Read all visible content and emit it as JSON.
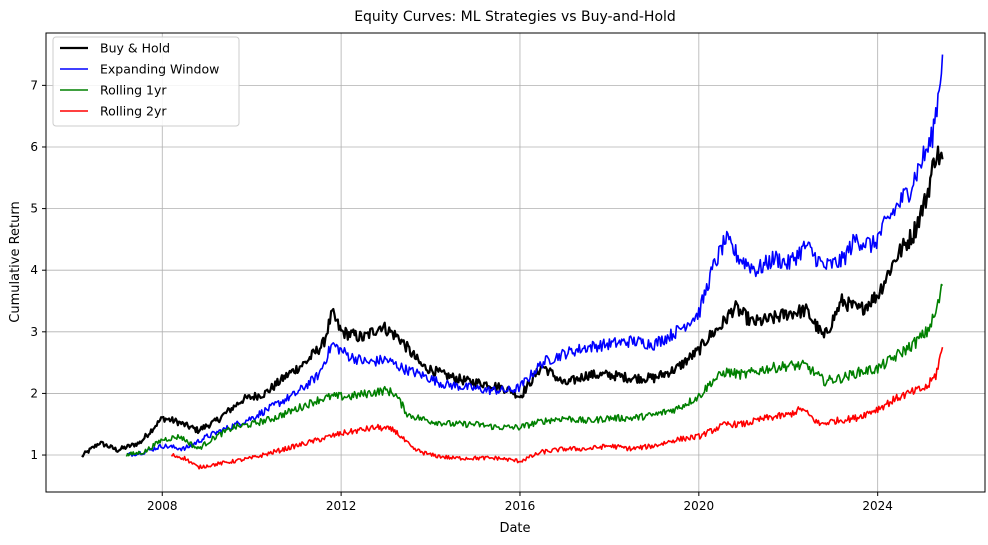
{
  "chart_data": {
    "type": "line",
    "title": "Equity Curves: ML Strategies vs Buy-and-Hold",
    "xlabel": "Date",
    "ylabel": "Cumulative Return",
    "xlim": [
      2005.4,
      2026.4
    ],
    "ylim": [
      0.4,
      7.85
    ],
    "xticks": [
      2008,
      2012,
      2016,
      2020,
      2024
    ],
    "yticks": [
      1,
      2,
      3,
      4,
      5,
      6,
      7
    ],
    "grid": true,
    "legend_position": "top-left",
    "series": [
      {
        "name": "Buy & Hold",
        "color": "#000000",
        "width": 2.2,
        "x": [
          2006.2,
          2006.6,
          2007.0,
          2007.5,
          2008.0,
          2008.3,
          2008.8,
          2009.2,
          2009.8,
          2010.3,
          2010.8,
          2011.2,
          2011.6,
          2011.8,
          2012.0,
          2012.5,
          2012.9,
          2013.3,
          2013.8,
          2014.3,
          2014.8,
          2015.3,
          2015.8,
          2016.0,
          2016.5,
          2017.0,
          2017.5,
          2018.0,
          2018.5,
          2019.0,
          2019.5,
          2020.0,
          2020.2,
          2020.5,
          2020.8,
          2021.2,
          2021.6,
          2022.0,
          2022.4,
          2022.8,
          2023.2,
          2023.6,
          2024.0,
          2024.4,
          2024.8,
          2025.1,
          2025.3,
          2025.45
        ],
        "y": [
          0.98,
          1.2,
          1.08,
          1.2,
          1.6,
          1.55,
          1.4,
          1.55,
          1.9,
          2.0,
          2.3,
          2.5,
          2.8,
          3.3,
          3.0,
          2.9,
          3.1,
          2.9,
          2.45,
          2.3,
          2.2,
          2.15,
          2.05,
          1.95,
          2.45,
          2.15,
          2.3,
          2.3,
          2.25,
          2.25,
          2.4,
          2.7,
          2.9,
          3.1,
          3.4,
          3.15,
          3.2,
          3.3,
          3.35,
          2.9,
          3.5,
          3.35,
          3.6,
          4.2,
          4.6,
          5.2,
          5.9,
          5.8
        ]
      },
      {
        "name": "Expanding Window",
        "color": "#0000ff",
        "width": 1.6,
        "x": [
          2007.2,
          2007.6,
          2008.0,
          2008.5,
          2009.0,
          2009.5,
          2010.0,
          2010.5,
          2011.0,
          2011.5,
          2011.8,
          2012.2,
          2012.6,
          2013.0,
          2013.4,
          2013.8,
          2014.3,
          2014.8,
          2015.3,
          2015.8,
          2016.0,
          2016.5,
          2017.0,
          2017.5,
          2018.0,
          2018.5,
          2019.0,
          2019.5,
          2020.0,
          2020.3,
          2020.6,
          2020.9,
          2021.3,
          2021.7,
          2022.0,
          2022.4,
          2022.8,
          2023.2,
          2023.5,
          2023.9,
          2024.3,
          2024.7,
          2025.0,
          2025.2,
          2025.35,
          2025.45
        ],
        "y": [
          1.0,
          1.05,
          1.15,
          1.1,
          1.3,
          1.45,
          1.6,
          1.8,
          2.0,
          2.3,
          2.8,
          2.6,
          2.5,
          2.55,
          2.4,
          2.3,
          2.15,
          2.1,
          2.05,
          2.05,
          2.1,
          2.5,
          2.65,
          2.75,
          2.8,
          2.85,
          2.8,
          3.0,
          3.3,
          4.0,
          4.5,
          4.2,
          4.0,
          4.2,
          4.1,
          4.4,
          4.05,
          4.15,
          4.5,
          4.4,
          4.9,
          5.3,
          5.8,
          6.1,
          6.8,
          7.5
        ]
      },
      {
        "name": "Rolling 1yr",
        "color": "#008000",
        "width": 1.6,
        "x": [
          2007.2,
          2007.6,
          2008.0,
          2008.4,
          2008.8,
          2009.2,
          2009.6,
          2010.0,
          2010.5,
          2011.0,
          2011.5,
          2011.8,
          2012.2,
          2012.6,
          2013.0,
          2013.2,
          2013.5,
          2014.0,
          2014.5,
          2015.0,
          2015.5,
          2016.0,
          2016.5,
          2017.0,
          2017.5,
          2018.0,
          2018.5,
          2019.0,
          2019.5,
          2020.0,
          2020.3,
          2020.6,
          2021.0,
          2021.5,
          2022.0,
          2022.4,
          2022.8,
          2023.2,
          2023.6,
          2024.0,
          2024.4,
          2024.8,
          2025.1,
          2025.3,
          2025.45
        ],
        "y": [
          1.0,
          1.05,
          1.25,
          1.3,
          1.1,
          1.3,
          1.45,
          1.5,
          1.6,
          1.75,
          1.9,
          1.95,
          1.95,
          2.0,
          2.05,
          2.0,
          1.65,
          1.55,
          1.5,
          1.5,
          1.45,
          1.45,
          1.55,
          1.6,
          1.55,
          1.6,
          1.6,
          1.65,
          1.75,
          1.95,
          2.2,
          2.35,
          2.3,
          2.4,
          2.45,
          2.45,
          2.2,
          2.25,
          2.35,
          2.4,
          2.6,
          2.8,
          3.0,
          3.3,
          3.75
        ]
      },
      {
        "name": "Rolling 2yr",
        "color": "#ff0000",
        "width": 1.6,
        "x": [
          2008.2,
          2008.5,
          2008.8,
          2009.2,
          2009.6,
          2010.0,
          2010.5,
          2011.0,
          2011.5,
          2012.0,
          2012.4,
          2012.8,
          2013.2,
          2013.6,
          2014.0,
          2014.5,
          2015.0,
          2015.5,
          2016.0,
          2016.5,
          2017.0,
          2017.5,
          2018.0,
          2018.5,
          2019.0,
          2019.5,
          2020.0,
          2020.3,
          2020.6,
          2021.0,
          2021.5,
          2022.0,
          2022.3,
          2022.7,
          2023.0,
          2023.5,
          2024.0,
          2024.5,
          2024.9,
          2025.1,
          2025.3,
          2025.45
        ],
        "y": [
          1.0,
          0.95,
          0.8,
          0.85,
          0.9,
          0.95,
          1.05,
          1.15,
          1.25,
          1.35,
          1.4,
          1.45,
          1.4,
          1.1,
          1.0,
          0.95,
          0.95,
          0.95,
          0.9,
          1.05,
          1.1,
          1.1,
          1.15,
          1.1,
          1.15,
          1.25,
          1.3,
          1.4,
          1.5,
          1.5,
          1.6,
          1.65,
          1.75,
          1.5,
          1.55,
          1.6,
          1.75,
          1.95,
          2.05,
          2.1,
          2.3,
          2.75
        ]
      }
    ]
  }
}
